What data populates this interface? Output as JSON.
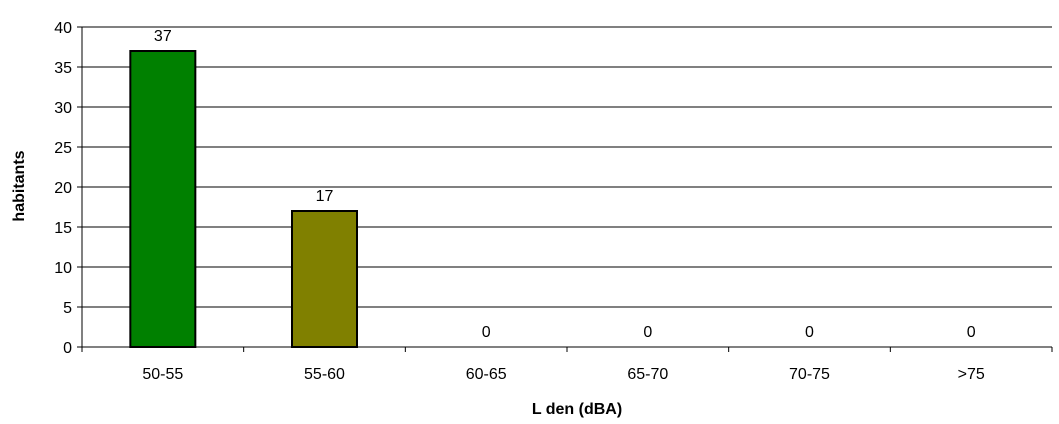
{
  "chart_data": {
    "type": "bar",
    "title": "",
    "xlabel": "L den (dBA)",
    "ylabel": "habitants",
    "categories": [
      "50-55",
      "55-60",
      "60-65",
      "65-70",
      "70-75",
      ">75"
    ],
    "values": [
      37,
      17,
      0,
      0,
      0,
      0
    ],
    "data_labels": [
      "37",
      "17",
      "0",
      "0",
      "0",
      "0"
    ],
    "bar_colors": [
      "#008000",
      "#808000",
      "#008000",
      "#008000",
      "#008000",
      "#008000"
    ],
    "ylim": [
      0,
      40
    ],
    "yticks": [
      0,
      5,
      10,
      15,
      20,
      25,
      30,
      35,
      40
    ],
    "grid": true,
    "legend": "none"
  }
}
